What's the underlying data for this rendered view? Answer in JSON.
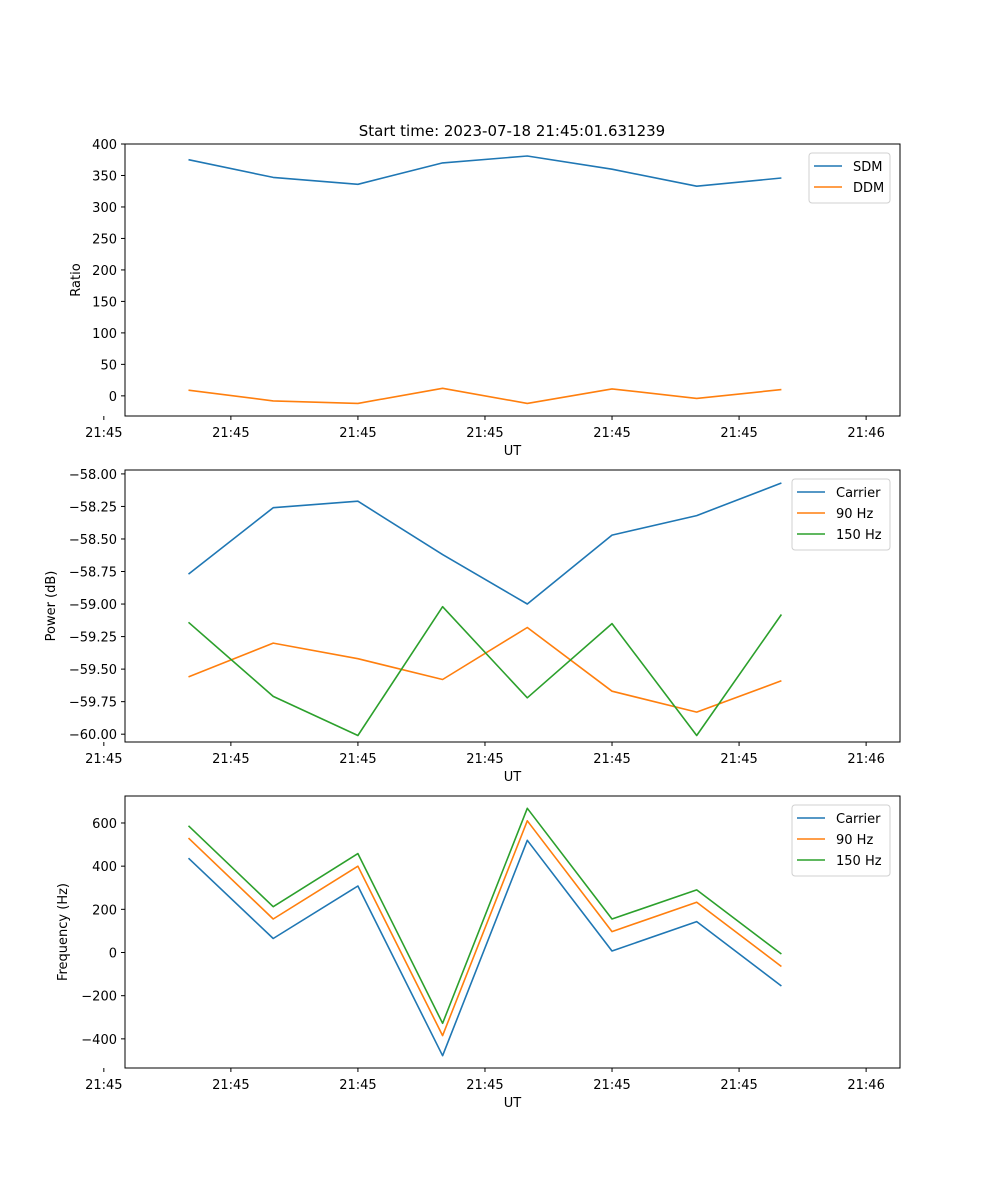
{
  "figure_title": "Start time: 2023-07-18 21:45:01.631239",
  "chart_data": [
    {
      "type": "line",
      "title": "Start time: 2023-07-18 21:45:01.631239",
      "xlabel": "UT",
      "ylabel": "Ratio",
      "x": [
        1,
        2,
        3,
        4,
        5,
        6,
        7,
        8
      ],
      "xlim": [
        0.25,
        9.4
      ],
      "x_ticks": [
        0,
        1.5,
        3,
        4.5,
        6,
        7.5,
        9
      ],
      "x_tick_labels": [
        "21:45",
        "21:45",
        "21:45",
        "21:45",
        "21:45",
        "21:45",
        "21:46"
      ],
      "ylim": [
        -32,
        400
      ],
      "y_ticks": [
        0,
        50,
        100,
        150,
        200,
        250,
        300,
        350,
        400
      ],
      "y_tick_labels": [
        "0",
        "50",
        "100",
        "150",
        "200",
        "250",
        "300",
        "350",
        "400"
      ],
      "legend_position": "top-right",
      "series": [
        {
          "name": "SDM",
          "color": "#1f77b4",
          "values": [
            375,
            347,
            336,
            370,
            381,
            360,
            333,
            346
          ]
        },
        {
          "name": "DDM",
          "color": "#ff7f0e",
          "values": [
            9,
            -8,
            -12,
            12,
            -12,
            11,
            -4,
            10
          ]
        }
      ]
    },
    {
      "type": "line",
      "title": "",
      "xlabel": "UT",
      "ylabel": "Power (dB)",
      "x": [
        1,
        2,
        3,
        4,
        5,
        6,
        7,
        8
      ],
      "xlim": [
        0.25,
        9.4
      ],
      "x_ticks": [
        0,
        1.5,
        3,
        4.5,
        6,
        7.5,
        9
      ],
      "x_tick_labels": [
        "21:45",
        "21:45",
        "21:45",
        "21:45",
        "21:45",
        "21:45",
        "21:46"
      ],
      "ylim": [
        -60.06,
        -57.97
      ],
      "y_ticks": [
        -60.0,
        -59.75,
        -59.5,
        -59.25,
        -59.0,
        -58.75,
        -58.5,
        -58.25,
        -58.0
      ],
      "y_tick_labels": [
        "−60.00",
        "−59.75",
        "−59.50",
        "−59.25",
        "−59.00",
        "−58.75",
        "−58.50",
        "−58.25",
        "−58.00"
      ],
      "legend_position": "top-right",
      "series": [
        {
          "name": "Carrier",
          "color": "#1f77b4",
          "values": [
            -58.77,
            -58.26,
            -58.21,
            -58.62,
            -59.0,
            -58.47,
            -58.32,
            -58.07
          ]
        },
        {
          "name": "90 Hz",
          "color": "#ff7f0e",
          "values": [
            -59.56,
            -59.3,
            -59.42,
            -59.58,
            -59.18,
            -59.67,
            -59.83,
            -59.59
          ]
        },
        {
          "name": "150 Hz",
          "color": "#2ca02c",
          "values": [
            -59.14,
            -59.71,
            -60.01,
            -59.02,
            -59.72,
            -59.15,
            -60.01,
            -59.08
          ]
        }
      ]
    },
    {
      "type": "line",
      "title": "",
      "xlabel": "UT",
      "ylabel": "Frequency (Hz)",
      "x": [
        1,
        2,
        3,
        4,
        5,
        6,
        7,
        8
      ],
      "xlim": [
        0.25,
        9.4
      ],
      "x_ticks": [
        0,
        1.5,
        3,
        4.5,
        6,
        7.5,
        9
      ],
      "x_tick_labels": [
        "21:45",
        "21:45",
        "21:45",
        "21:45",
        "21:45",
        "21:45",
        "21:46"
      ],
      "ylim": [
        -535,
        725
      ],
      "y_ticks": [
        -400,
        -200,
        0,
        200,
        400,
        600
      ],
      "y_tick_labels": [
        "−400",
        "−200",
        "0",
        "200",
        "400",
        "600"
      ],
      "legend_position": "top-right",
      "series": [
        {
          "name": "Carrier",
          "color": "#1f77b4",
          "values": [
            437,
            65,
            308,
            -478,
            520,
            7,
            143,
            -155
          ]
        },
        {
          "name": "90 Hz",
          "color": "#ff7f0e",
          "values": [
            530,
            155,
            400,
            -385,
            610,
            97,
            233,
            -65
          ]
        },
        {
          "name": "150 Hz",
          "color": "#2ca02c",
          "values": [
            587,
            212,
            458,
            -328,
            668,
            155,
            290,
            -7
          ]
        }
      ]
    }
  ]
}
